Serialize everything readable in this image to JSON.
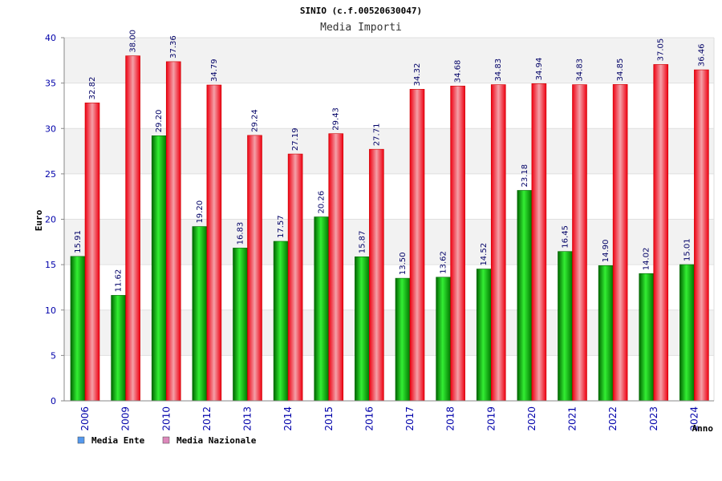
{
  "chart_data": {
    "type": "bar",
    "title": "SINIO (c.f.00520630047)",
    "subtitle": "Media Importi",
    "ylabel": "Euro",
    "xlabel": "Anno",
    "ylim": [
      0,
      40
    ],
    "yticks": [
      0,
      5,
      10,
      15,
      20,
      25,
      30,
      35,
      40
    ],
    "grid": true,
    "legend_position": "bottom-left",
    "categories": [
      "2006",
      "2009",
      "2010",
      "2012",
      "2013",
      "2014",
      "2015",
      "2016",
      "2017",
      "2018",
      "2019",
      "2020",
      "2021",
      "2022",
      "2023",
      "2024"
    ],
    "series": [
      {
        "name": "Media Ente",
        "color": "#00aa00",
        "legend_color": "#5599ee",
        "values": [
          15.91,
          11.62,
          29.2,
          19.2,
          16.83,
          17.57,
          20.26,
          15.87,
          13.5,
          13.62,
          14.52,
          23.18,
          16.45,
          14.9,
          14.02,
          15.01
        ],
        "labels": [
          "15.91",
          "11.62",
          "29.20",
          "19.20",
          "16.83",
          "17.57",
          "20.26",
          "15.87",
          "13.50",
          "13.62",
          "14.52",
          "23.18",
          "16.45",
          "14.90",
          "14.02",
          "15.01"
        ]
      },
      {
        "name": "Media Nazionale",
        "color": "#ee1122",
        "legend_color": "#dd88bb",
        "values": [
          32.82,
          38.0,
          37.36,
          34.79,
          29.24,
          27.19,
          29.43,
          27.71,
          34.32,
          34.68,
          34.83,
          34.94,
          34.83,
          34.85,
          37.05,
          36.46
        ],
        "labels": [
          "32.82",
          "38.00",
          "37.36",
          "34.79",
          "29.24",
          "27.19",
          "29.43",
          "27.71",
          "34.32",
          "34.68",
          "34.83",
          "34.94",
          "34.83",
          "34.85",
          "37.05",
          "36.46"
        ]
      }
    ]
  }
}
